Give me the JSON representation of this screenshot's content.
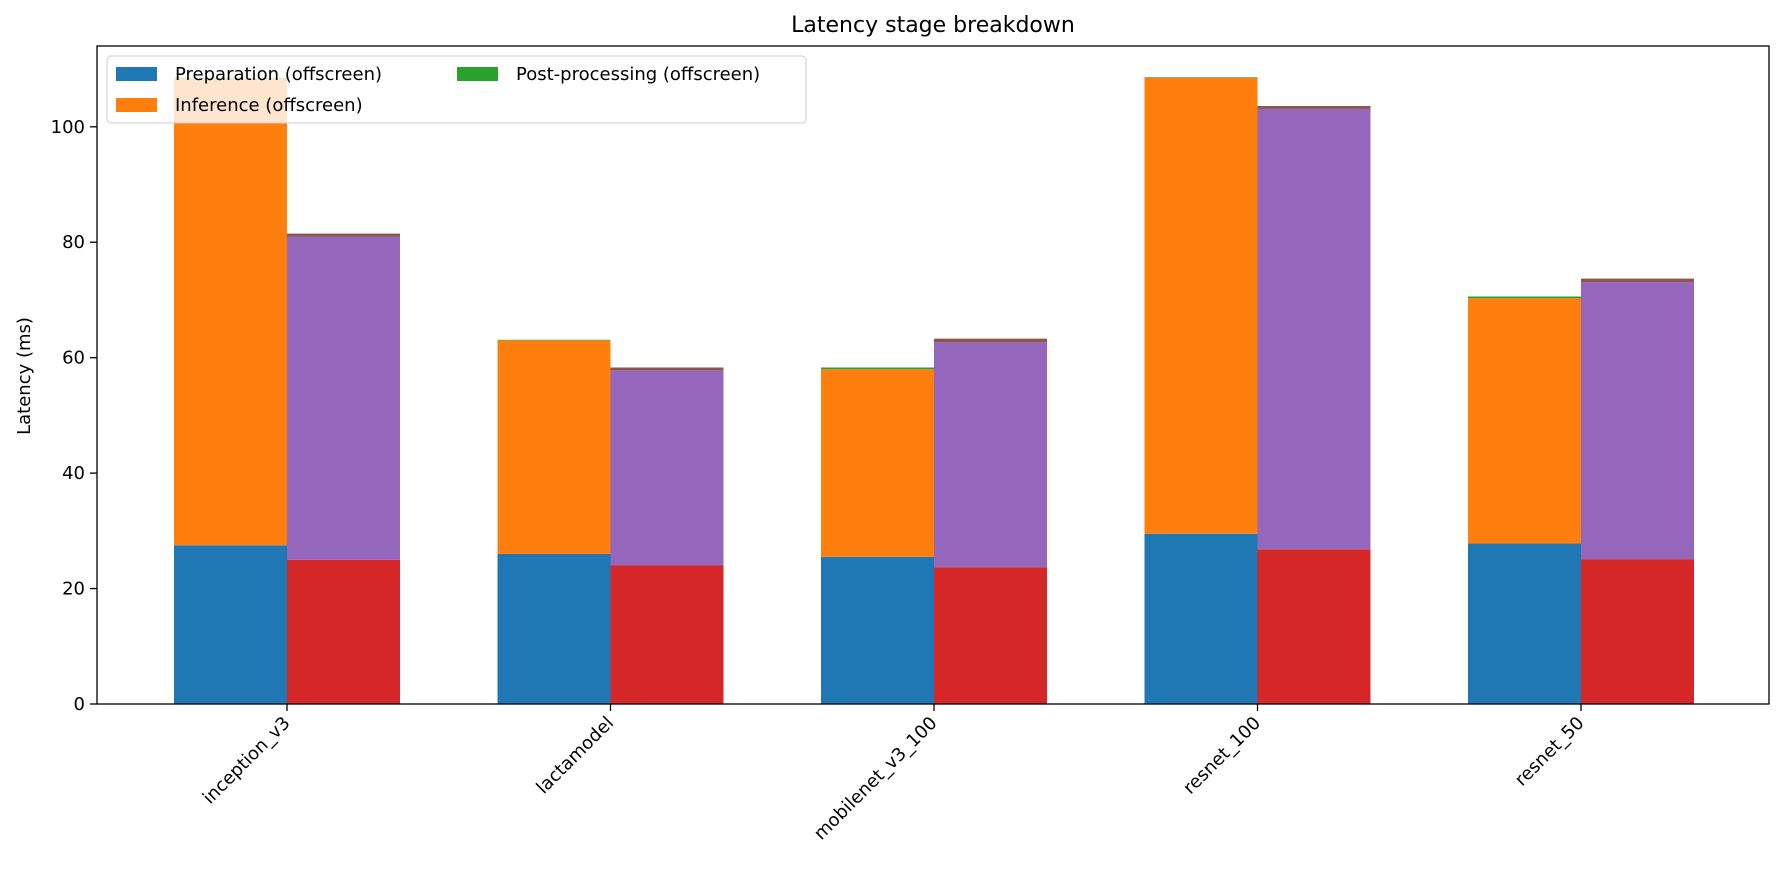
{
  "chart_data": {
    "type": "bar",
    "stacked": true,
    "grouped": true,
    "title": "Latency stage breakdown",
    "xlabel": "",
    "ylabel": "Latency (ms)",
    "ylim": [
      0,
      114
    ],
    "yticks": [
      0,
      20,
      40,
      60,
      80,
      100
    ],
    "grid": false,
    "legend_position": "top-left",
    "categories": [
      "inception_v3",
      "lactamodel",
      "mobilenet_v3_100",
      "resnet_100",
      "resnet_50"
    ],
    "groups": [
      {
        "series": [
          {
            "name": "Preparation (offscreen)",
            "color": "#1f77b4",
            "values": [
              27.5,
              26.0,
              25.5,
              29.5,
              27.8
            ]
          },
          {
            "name": "Inference (offscreen)",
            "color": "#ff7f0e",
            "values": [
              80.8,
              37.0,
              32.5,
              79.0,
              42.5
            ]
          },
          {
            "name": "Post-processing (offscreen)",
            "color": "#2ca02c",
            "values": [
              0.2,
              0.1,
              0.3,
              0.1,
              0.3
            ]
          }
        ]
      },
      {
        "series": [
          {
            "name": "",
            "color": "#d62728",
            "values": [
              25.0,
              24.0,
              23.7,
              26.8,
              25.1
            ]
          },
          {
            "name": "",
            "color": "#9467bd",
            "values": [
              56.0,
              33.8,
              39.0,
              76.3,
              48.0
            ]
          },
          {
            "name": "",
            "color": "#8c564b",
            "values": [
              0.5,
              0.5,
              0.6,
              0.5,
              0.6
            ]
          }
        ]
      }
    ]
  }
}
